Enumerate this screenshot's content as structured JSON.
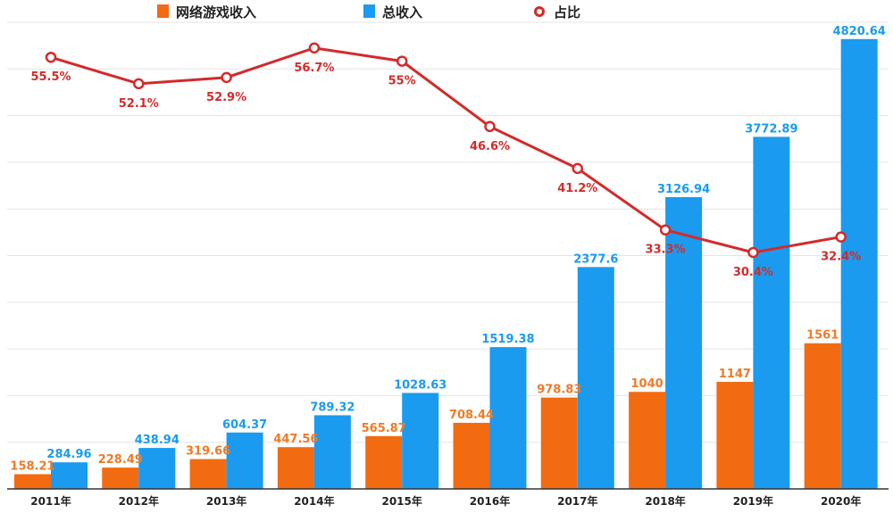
{
  "chart_data": {
    "type": "bar+line",
    "categories": [
      "2011年",
      "2012年",
      "2013年",
      "2014年",
      "2015年",
      "2016年",
      "2017年",
      "2018年",
      "2019年",
      "2020年"
    ],
    "series": [
      {
        "name": "网络游戏收入",
        "type": "bar",
        "color": "#F26B10",
        "values": [
          158.21,
          228.49,
          319.66,
          447.56,
          565.87,
          708.44,
          978.83,
          1040,
          1147,
          1561
        ],
        "labels": [
          "158.21",
          "228.49",
          "319.66",
          "447.56",
          "565.87",
          "708.44",
          "978.83",
          "1040",
          "1147",
          "1561"
        ]
      },
      {
        "name": "总收入",
        "type": "bar",
        "color": "#1A9BEF",
        "values": [
          284.96,
          438.94,
          604.37,
          789.32,
          1028.63,
          1519.38,
          2377.6,
          3126.94,
          3772.89,
          4820.64
        ],
        "labels": [
          "284.96",
          "438.94",
          "604.37",
          "789.32",
          "1028.63",
          "1519.38",
          "2377.6",
          "3126.94",
          "3772.89",
          "4820.64"
        ]
      },
      {
        "name": "占比",
        "type": "line",
        "color": "#D42A2A",
        "axis": "secondary",
        "values": [
          55.5,
          52.1,
          52.9,
          56.7,
          55,
          46.6,
          41.2,
          33.3,
          30.4,
          32.4
        ],
        "labels": [
          "55.5%",
          "52.1%",
          "52.9%",
          "56.7%",
          "55%",
          "46.6%",
          "41.2%",
          "33.3%",
          "30.4%",
          "32.4%"
        ]
      }
    ],
    "ylim": [
      0,
      5000
    ],
    "y2lim": [
      0,
      60
    ],
    "grid": true,
    "legend": "top"
  }
}
